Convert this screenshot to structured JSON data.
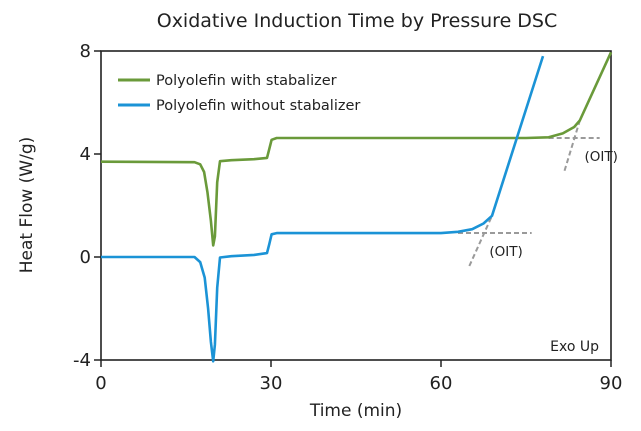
{
  "chart_data": {
    "type": "line",
    "title": "Oxidative Induction Time by Pressure DSC",
    "xlabel": "Time (min)",
    "ylabel": "Heat Flow (W/g)",
    "xlim": [
      0,
      90
    ],
    "ylim": [
      -4,
      8
    ],
    "x_ticks": [
      0,
      30,
      60,
      90
    ],
    "x_tick_labels": [
      "0",
      "30",
      "60",
      "90"
    ],
    "y_ticks": [
      -4,
      0,
      4,
      8
    ],
    "y_tick_labels": [
      "-4",
      "0",
      "4",
      "8"
    ],
    "grid": false,
    "legend_position": "top-left",
    "annotation": "Exo Up",
    "series": [
      {
        "name": "Polyolefin with stabalizer",
        "color": "#6a9a3a",
        "points": [
          [
            0,
            3.7
          ],
          [
            16.5,
            3.68
          ],
          [
            17.5,
            3.6
          ],
          [
            18.2,
            3.3
          ],
          [
            18.8,
            2.5
          ],
          [
            19.4,
            1.4
          ],
          [
            19.8,
            0.45
          ],
          [
            20.1,
            0.8
          ],
          [
            20.5,
            2.9
          ],
          [
            21,
            3.72
          ],
          [
            23,
            3.76
          ],
          [
            27,
            3.8
          ],
          [
            29.3,
            3.85
          ],
          [
            29.7,
            4.2
          ],
          [
            30.1,
            4.55
          ],
          [
            31,
            4.62
          ],
          [
            40,
            4.62
          ],
          [
            60,
            4.62
          ],
          [
            75,
            4.62
          ],
          [
            79,
            4.65
          ],
          [
            81.5,
            4.8
          ],
          [
            83.5,
            5.05
          ],
          [
            84.5,
            5.3
          ],
          [
            90,
            7.95
          ]
        ]
      },
      {
        "name": "Polyolefin without stabalizer",
        "color": "#1b93d6",
        "points": [
          [
            0,
            0.0
          ],
          [
            16.5,
            0.0
          ],
          [
            17.5,
            -0.2
          ],
          [
            18.3,
            -0.8
          ],
          [
            18.9,
            -2.0
          ],
          [
            19.4,
            -3.3
          ],
          [
            19.8,
            -4.05
          ],
          [
            20.1,
            -3.4
          ],
          [
            20.5,
            -1.2
          ],
          [
            21,
            -0.02
          ],
          [
            23,
            0.03
          ],
          [
            27,
            0.08
          ],
          [
            29.3,
            0.15
          ],
          [
            29.7,
            0.5
          ],
          [
            30.1,
            0.88
          ],
          [
            31,
            0.93
          ],
          [
            50,
            0.93
          ],
          [
            60,
            0.93
          ],
          [
            63,
            0.98
          ],
          [
            65.5,
            1.08
          ],
          [
            67.5,
            1.3
          ],
          [
            69,
            1.6
          ],
          [
            78,
            7.8
          ]
        ]
      }
    ],
    "oit_markers": [
      {
        "label": "(OIT)",
        "baseline": [
          [
            63,
            0.93
          ],
          [
            76,
            0.93
          ]
        ],
        "tangent": [
          [
            65,
            -0.35
          ],
          [
            69,
            1.6
          ]
        ]
      },
      {
        "label": "(OIT)",
        "baseline": [
          [
            79,
            4.62
          ],
          [
            88,
            4.62
          ]
        ],
        "tangent": [
          [
            81.8,
            3.35
          ],
          [
            84.5,
            5.3
          ]
        ]
      }
    ]
  }
}
